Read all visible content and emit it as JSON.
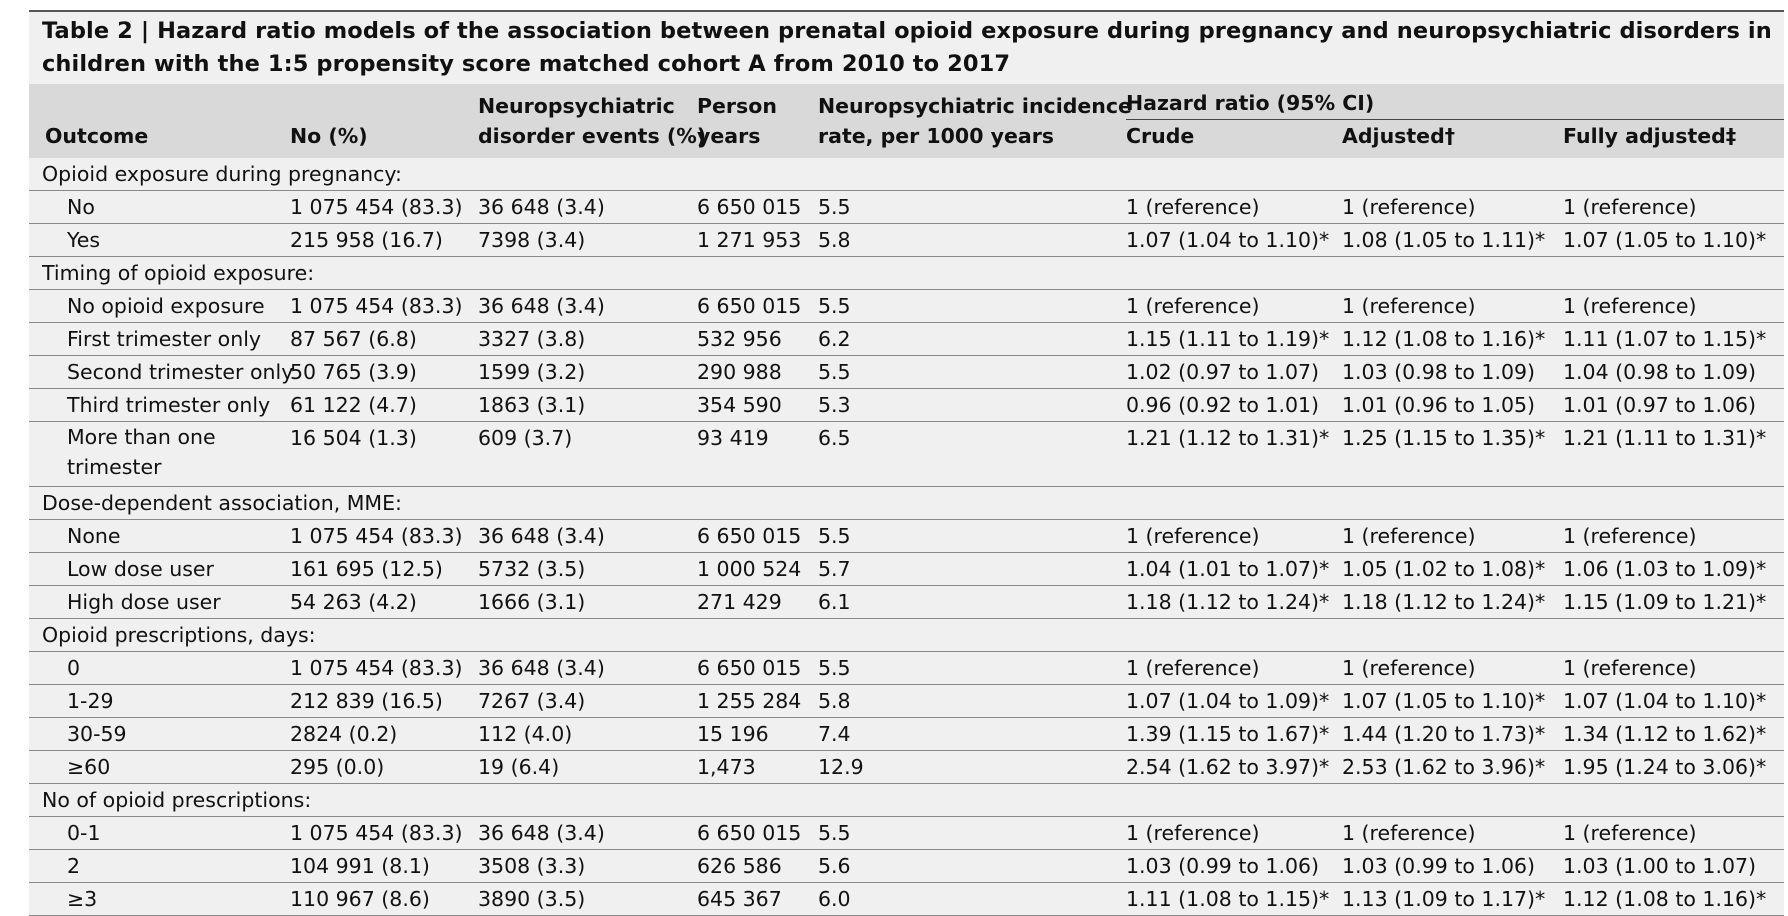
{
  "title": "Table 2 | Hazard ratio models of the association between prenatal opioid exposure during pregnancy and neuropsychiatric disorders in children with the 1:5 propensity score matched cohort A from 2010 to 2017",
  "header": {
    "outcome": "Outcome",
    "no_pct": "No (%)",
    "events_l1": "Neuropsychiatric",
    "events_l2": "disorder events (%)",
    "py_l1": "Person",
    "py_l2": "years",
    "rate_l1": "Neuropsychiatric incidence",
    "rate_l2": "rate, per 1000 years",
    "hr": "Hazard ratio (95% CI)",
    "crude": "Crude",
    "adjusted": "Adjusted†",
    "fully": "Fully adjusted‡"
  },
  "sections": [
    {
      "label": "Opioid exposure during pregnancy:",
      "rows": [
        {
          "outcome": "No",
          "no": "1 075 454 (83.3)",
          "events": "36 648 (3.4)",
          "py": "6 650 015",
          "rate": "5.5",
          "crude": "1 (reference)",
          "adj": "1 (reference)",
          "full": "1 (reference)"
        },
        {
          "outcome": "Yes",
          "no": "215 958 (16.7)",
          "events": "7398 (3.4)",
          "py": "1 271 953",
          "rate": "5.8",
          "crude": "1.07 (1.04 to 1.10)*",
          "adj": "1.08 (1.05 to 1.11)*",
          "full": "1.07 (1.05 to 1.10)*"
        }
      ]
    },
    {
      "label": "Timing of opioid exposure:",
      "rows": [
        {
          "outcome": "No opioid exposure",
          "no": "1 075 454 (83.3)",
          "events": "36 648 (3.4)",
          "py": "6 650 015",
          "rate": "5.5",
          "crude": "1 (reference)",
          "adj": "1 (reference)",
          "full": "1 (reference)"
        },
        {
          "outcome": "First trimester only",
          "no": "87 567 (6.8)",
          "events": "3327 (3.8)",
          "py": "532 956",
          "rate": "6.2",
          "crude": "1.15 (1.11 to 1.19)*",
          "adj": "1.12 (1.08 to 1.16)*",
          "full": "1.11 (1.07 to 1.15)*"
        },
        {
          "outcome": "Second trimester only",
          "no": "50 765 (3.9)",
          "events": "1599 (3.2)",
          "py": "290 988",
          "rate": "5.5",
          "crude": "1.02 (0.97 to 1.07)",
          "adj": "1.03 (0.98 to 1.09)",
          "full": "1.04 (0.98 to 1.09)"
        },
        {
          "outcome": "Third trimester only",
          "no": "61 122 (4.7)",
          "events": "1863 (3.1)",
          "py": "354 590",
          "rate": "5.3",
          "crude": "0.96 (0.92 to 1.01)",
          "adj": "1.01 (0.96 to 1.05)",
          "full": "1.01 (0.97 to 1.06)"
        },
        {
          "outcome": "More than one trimester",
          "no": "16 504 (1.3)",
          "events": "609 (3.7)",
          "py": "93 419",
          "rate": "6.5",
          "crude": "1.21 (1.12 to 1.31)*",
          "adj": "1.25 (1.15 to 1.35)*",
          "full": "1.21 (1.11 to 1.31)*",
          "tall": true
        }
      ]
    },
    {
      "label": "Dose-dependent association, MME:",
      "rows": [
        {
          "outcome": "None",
          "no": "1 075 454 (83.3)",
          "events": "36 648 (3.4)",
          "py": "6 650 015",
          "rate": "5.5",
          "crude": "1 (reference)",
          "adj": "1 (reference)",
          "full": "1 (reference)"
        },
        {
          "outcome": "Low dose user",
          "no": "161 695 (12.5)",
          "events": "5732 (3.5)",
          "py": "1 000 524",
          "rate": "5.7",
          "crude": "1.04 (1.01 to 1.07)*",
          "adj": "1.05 (1.02 to 1.08)*",
          "full": "1.06 (1.03 to 1.09)*"
        },
        {
          "outcome": "High dose user",
          "no": "54 263 (4.2)",
          "events": "1666 (3.1)",
          "py": "271 429",
          "rate": "6.1",
          "crude": "1.18 (1.12 to 1.24)*",
          "adj": "1.18 (1.12 to 1.24)*",
          "full": "1.15 (1.09 to 1.21)*"
        }
      ]
    },
    {
      "label": "Opioid prescriptions, days:",
      "rows": [
        {
          "outcome": "0",
          "no": "1 075 454 (83.3)",
          "events": "36 648 (3.4)",
          "py": "6 650 015",
          "rate": "5.5",
          "crude": "1 (reference)",
          "adj": "1 (reference)",
          "full": "1 (reference)"
        },
        {
          "outcome": "1-29",
          "no": "212 839 (16.5)",
          "events": "7267 (3.4)",
          "py": "1 255 284",
          "rate": "5.8",
          "crude": "1.07 (1.04 to 1.09)*",
          "adj": "1.07 (1.05 to 1.10)*",
          "full": "1.07 (1.04 to 1.10)*"
        },
        {
          "outcome": "30-59",
          "no": "2824 (0.2)",
          "events": "112 (4.0)",
          "py": "15 196",
          "rate": "7.4",
          "crude": "1.39 (1.15 to 1.67)*",
          "adj": "1.44 (1.20 to 1.73)*",
          "full": "1.34 (1.12 to 1.62)*"
        },
        {
          "outcome": "≥60",
          "no": "295 (0.0)",
          "events": "19 (6.4)",
          "py": "1,473",
          "rate": "12.9",
          "crude": "2.54 (1.62 to 3.97)*",
          "adj": "2.53 (1.62 to 3.96)*",
          "full": "1.95 (1.24 to 3.06)*"
        }
      ]
    },
    {
      "label": "No of opioid prescriptions:",
      "rows": [
        {
          "outcome": "0-1",
          "no": "1 075 454 (83.3)",
          "events": "36 648 (3.4)",
          "py": "6 650 015",
          "rate": "5.5",
          "crude": "1 (reference)",
          "adj": "1 (reference)",
          "full": "1 (reference)"
        },
        {
          "outcome": "2",
          "no": "104 991 (8.1)",
          "events": "3508 (3.3)",
          "py": "626 586",
          "rate": "5.6",
          "crude": "1.03 (0.99 to 1.06)",
          "adj": "1.03 (0.99 to 1.06)",
          "full": "1.03 (1.00 to 1.07)"
        },
        {
          "outcome": "≥3",
          "no": "110 967 (8.6)",
          "events": "3890 (3.5)",
          "py": "645 367",
          "rate": "6.0",
          "crude": "1.11 (1.08 to 1.15)*",
          "adj": "1.13 (1.09 to 1.17)*",
          "full": "1.12 (1.08 to 1.16)*"
        }
      ]
    }
  ]
}
